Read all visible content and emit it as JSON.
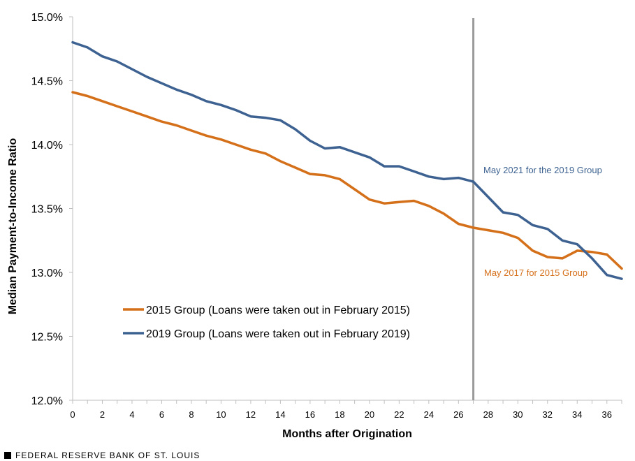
{
  "chart_data": {
    "type": "line",
    "title": "",
    "xlabel": "Months after Origination",
    "ylabel": "Median Payment-to-Income Ratio",
    "xlim": [
      0,
      37
    ],
    "ylim": [
      12.0,
      15.0
    ],
    "x_ticks": [
      0,
      2,
      4,
      6,
      8,
      10,
      12,
      14,
      16,
      18,
      20,
      22,
      24,
      26,
      28,
      30,
      32,
      34,
      36
    ],
    "x_tick_labels": [
      "0",
      "2",
      "4",
      "6",
      "8",
      "10",
      "12",
      "14",
      "16",
      "18",
      "20",
      "22",
      "24",
      "26",
      "28",
      "30",
      "32",
      "34",
      "36"
    ],
    "y_ticks": [
      12.0,
      12.5,
      13.0,
      13.5,
      14.0,
      14.5,
      15.0
    ],
    "y_tick_labels": [
      "12.0%",
      "12.5%",
      "13.0%",
      "13.5%",
      "14.0%",
      "14.5%",
      "15.0%"
    ],
    "x": [
      0,
      1,
      2,
      3,
      4,
      5,
      6,
      7,
      8,
      9,
      10,
      11,
      12,
      13,
      14,
      15,
      16,
      17,
      18,
      19,
      20,
      21,
      22,
      23,
      24,
      25,
      26,
      27,
      28,
      29,
      30,
      31,
      32,
      33,
      34,
      35,
      36,
      37
    ],
    "series": [
      {
        "name": "2015 Group (Loans were taken out in February 2015)",
        "color": "#d5701a",
        "values": [
          14.41,
          14.38,
          14.34,
          14.3,
          14.26,
          14.22,
          14.18,
          14.15,
          14.11,
          14.07,
          14.04,
          14.0,
          13.96,
          13.93,
          13.87,
          13.82,
          13.77,
          13.76,
          13.73,
          13.65,
          13.57,
          13.54,
          13.55,
          13.56,
          13.52,
          13.46,
          13.38,
          13.35,
          13.33,
          13.31,
          13.27,
          13.17,
          13.12,
          13.11,
          13.17,
          13.16,
          13.14,
          13.03
        ]
      },
      {
        "name": "2019 Group (Loans were taken out in February 2019)",
        "color": "#3d6291",
        "values": [
          14.8,
          14.76,
          14.69,
          14.65,
          14.59,
          14.53,
          14.48,
          14.43,
          14.39,
          14.34,
          14.31,
          14.27,
          14.22,
          14.21,
          14.19,
          14.12,
          14.03,
          13.97,
          13.98,
          13.94,
          13.9,
          13.83,
          13.83,
          13.79,
          13.75,
          13.73,
          13.74,
          13.71,
          13.59,
          13.47,
          13.45,
          13.37,
          13.34,
          13.25,
          13.22,
          13.11,
          12.98,
          12.95
        ]
      }
    ],
    "vertical_line": {
      "x": 27,
      "color": "#9a9a9a"
    },
    "annotations": [
      {
        "text": "May 2021 for the 2019 Group",
        "x": 27,
        "y": 13.71,
        "color": "#3d6291"
      },
      {
        "text": "May 2017 for 2015 Group",
        "x": 27,
        "y": 13.35,
        "color": "#d5701a"
      }
    ],
    "legend": {
      "placement": "lower-left"
    },
    "grid": false
  },
  "footer": {
    "source": "FEDERAL RESERVE BANK OF ST. LOUIS"
  }
}
